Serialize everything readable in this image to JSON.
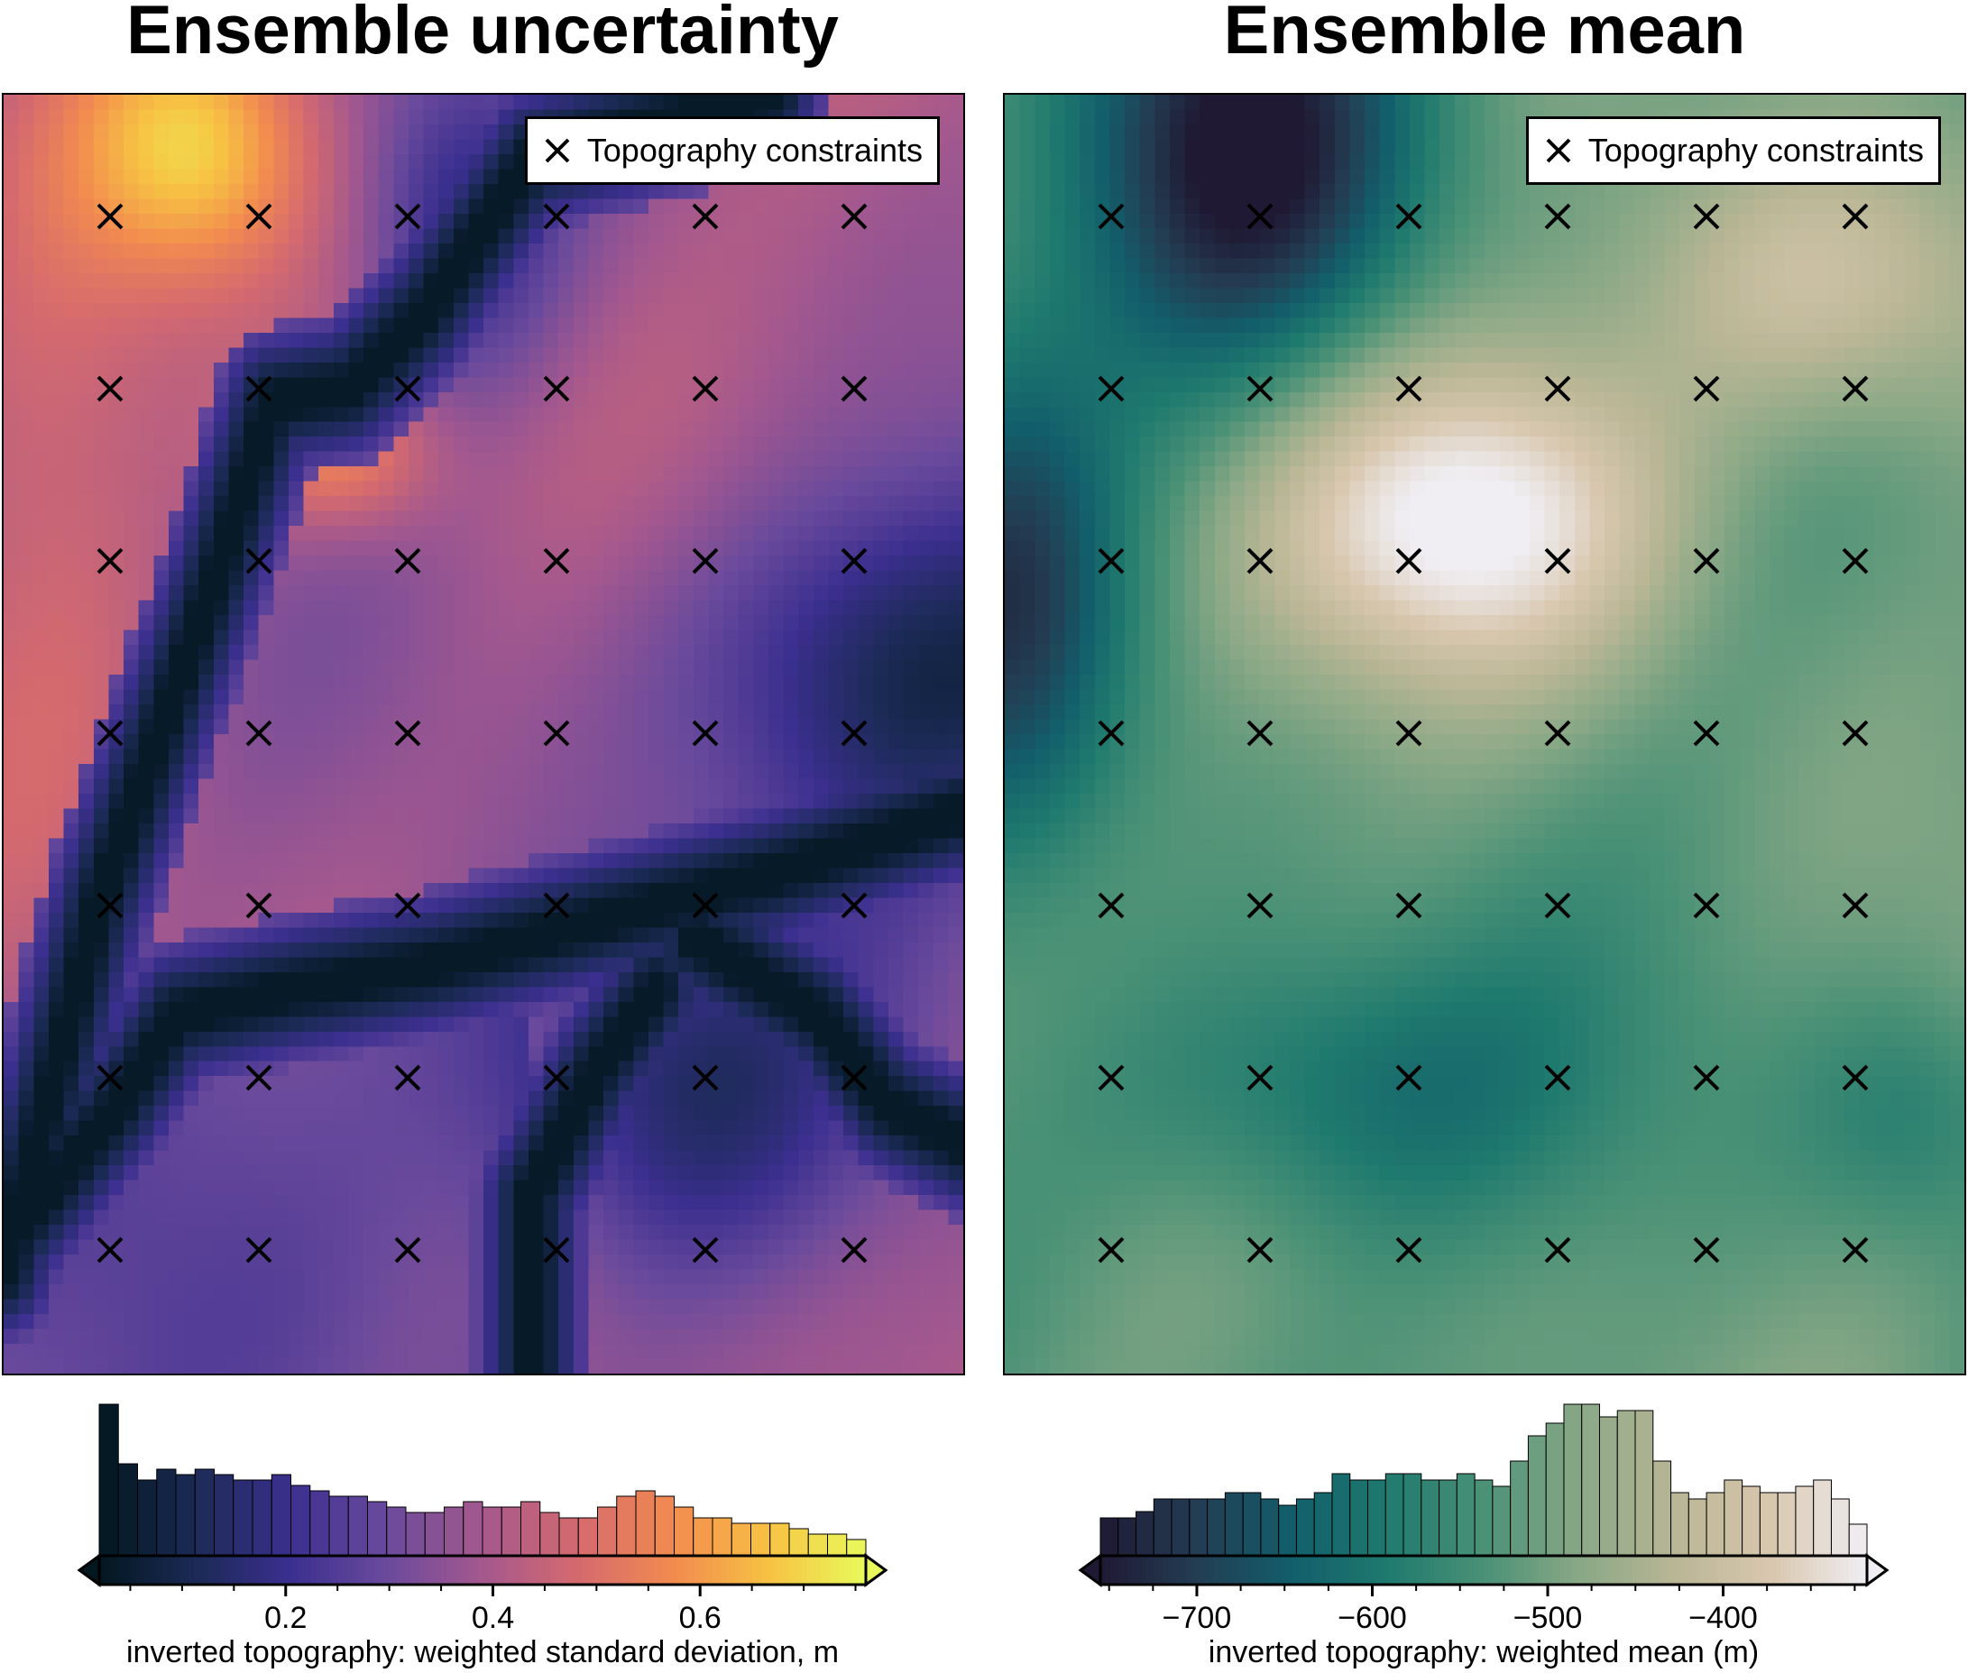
{
  "panels": {
    "left": {
      "title": "Ensemble uncertainty",
      "legend_label": "Topography constraints",
      "colorbar_label": "inverted topography: weighted standard deviation, m",
      "colormap": "thermal",
      "colormap_stops": [
        "#03171f",
        "#1b2a55",
        "#3b2f8f",
        "#6a4a9c",
        "#a4588e",
        "#d56a6e",
        "#f28b4f",
        "#f7c343",
        "#e8fa5b"
      ]
    },
    "right": {
      "title": "Ensemble mean",
      "legend_label": "Topography constraints",
      "colorbar_label": "inverted topography: weighted mean (m)",
      "colormap": "rain/tempo-like",
      "colormap_stops": [
        "#1f1933",
        "#233d53",
        "#125e6b",
        "#1f7a6e",
        "#4a9176",
        "#89a886",
        "#b9b695",
        "#d8c7ae",
        "#f0eef3"
      ]
    }
  },
  "chart_data": [
    {
      "type": "heatmap",
      "title": "Ensemble uncertainty",
      "colorbar_label": "inverted topography: weighted standard deviation, m",
      "colorbar_range": [
        0.02,
        0.76
      ],
      "colorbar_ticks": [
        "0.2",
        "0.4",
        "0.6"
      ],
      "colorbar_tick_values": [
        0.2,
        0.4,
        0.6
      ],
      "colorbar_extend": "both",
      "histogram_counts": [
        28,
        17,
        14,
        16,
        15,
        16,
        15,
        14,
        14,
        15,
        13,
        12,
        11,
        11,
        10,
        9,
        8,
        8,
        9,
        10,
        9,
        9,
        10,
        8,
        7,
        7,
        9,
        11,
        12,
        11,
        9,
        7,
        7,
        6,
        6,
        6,
        5,
        4,
        4,
        3
      ],
      "legend": {
        "label": "Topography constraints",
        "position": "top-right",
        "marker": "x"
      },
      "constraint_grid": {
        "columns": 6,
        "rows": 7
      }
    },
    {
      "type": "heatmap",
      "title": "Ensemble mean",
      "colorbar_label": "inverted topography: weighted mean (m)",
      "colorbar_range": [
        -755,
        -318
      ],
      "colorbar_ticks": [
        "−700",
        "−600",
        "−500",
        "−400"
      ],
      "colorbar_tick_values": [
        -700,
        -600,
        -500,
        -400
      ],
      "colorbar_extend": "both",
      "histogram_counts": [
        6,
        6,
        7,
        9,
        9,
        9,
        9,
        10,
        10,
        9,
        8,
        9,
        10,
        13,
        12,
        12,
        13,
        13,
        12,
        12,
        13,
        12,
        11,
        15,
        19,
        21,
        24,
        24,
        22,
        23,
        23,
        15,
        10,
        9,
        10,
        12,
        11,
        10,
        10,
        11,
        12,
        9,
        5
      ],
      "legend": {
        "label": "Topography constraints",
        "position": "top-right",
        "marker": "x"
      },
      "constraint_grid": {
        "columns": 6,
        "rows": 7
      }
    }
  ]
}
